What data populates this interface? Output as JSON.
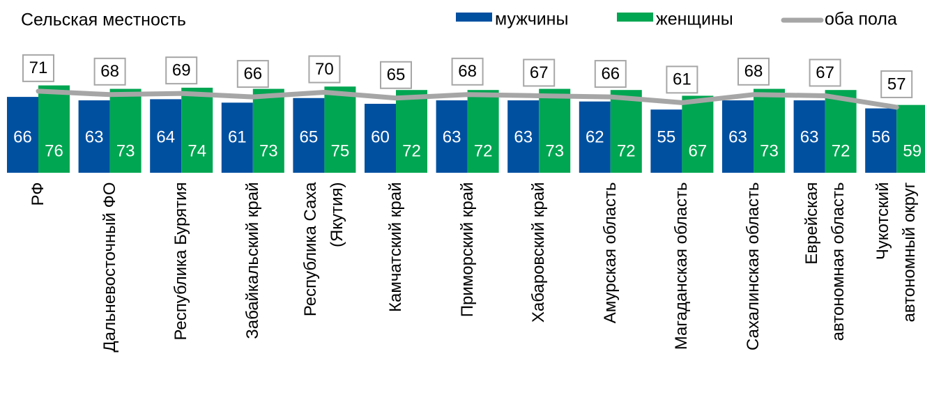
{
  "chart_data": {
    "type": "bar",
    "title": "Сельская местность",
    "categories": [
      "РФ",
      "Дальневосточный ФО",
      "Республика Бурятия",
      "Забайкальский край",
      "Республика Саха\n(Якутия)",
      "Камчатский край",
      "Приморский край",
      "Хабаровский край",
      "Амурская область",
      "Магаданская область",
      "Сахалинская область",
      "Еврейская\nавтономная область",
      "Чукотский\nавтономный округ"
    ],
    "series": [
      {
        "name": "мужчины",
        "type": "bar",
        "color": "#0050a0",
        "values": [
          66,
          63,
          64,
          61,
          65,
          60,
          63,
          63,
          62,
          55,
          63,
          63,
          56
        ]
      },
      {
        "name": "женщины",
        "type": "bar",
        "color": "#00a651",
        "values": [
          76,
          73,
          74,
          73,
          75,
          72,
          72,
          73,
          72,
          67,
          73,
          72,
          59
        ]
      },
      {
        "name": "оба пола",
        "type": "line",
        "color": "#a6a6a6",
        "values": [
          71,
          68,
          69,
          66,
          70,
          65,
          68,
          67,
          66,
          61,
          68,
          67,
          57
        ]
      }
    ],
    "ylim": [
      0,
      100
    ]
  }
}
